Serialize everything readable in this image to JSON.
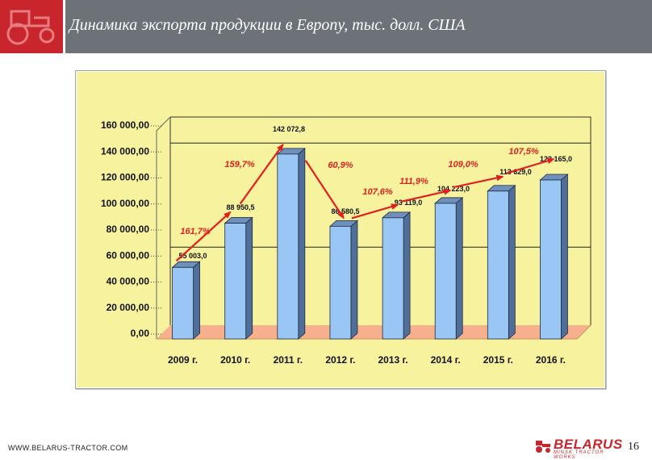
{
  "slide": {
    "title": "Динамика экспорта продукции в Европу, тыс. долл. США",
    "footer_url": "WWW.BELARUS-TRACTOR.COM",
    "brand_name": "BELARUS",
    "brand_sub": "MINSK TRACTOR WORKS",
    "page_number": "16"
  },
  "colors": {
    "header_bg": "#6d7178",
    "logo_red": "#c9252c",
    "chart_bg": "#f7f29e",
    "floor": "#f6b08c",
    "bar_face": "#99c6f4",
    "bar_top": "#6f90bb",
    "bar_side": "#4f6e98",
    "arrow": "#e02020"
  },
  "chart_data": {
    "type": "bar",
    "categories": [
      "2009 г.",
      "2010 г.",
      "2011 г.",
      "2012 г.",
      "2013 г.",
      "2014 г.",
      "2015 г.",
      "2016 г."
    ],
    "values": [
      55003.0,
      88950.5,
      142072.8,
      86580.5,
      93119.0,
      104223.0,
      113629.0,
      122165.0
    ],
    "data_labels": [
      "55 003,0",
      "88 950,5",
      "142 072,8",
      "86 580,5",
      "93 119,0",
      "104 223,0",
      "113 629,0",
      "122 165,0"
    ],
    "growth_labels": [
      "161,7%",
      "159,7%",
      "60,9%",
      "107,6%",
      "111,9%",
      "109,0%",
      "107,5%"
    ],
    "y_ticks": [
      "0,00",
      "20 000,00",
      "40 000,00",
      "60 000,00",
      "80 000,00",
      "100 000,00",
      "120 000,00",
      "140 000,00",
      "160 000,00"
    ],
    "ylim": [
      0,
      160000
    ],
    "style": "3d",
    "legend": "none",
    "grid": "major lines at 60 000 and 140 000"
  }
}
